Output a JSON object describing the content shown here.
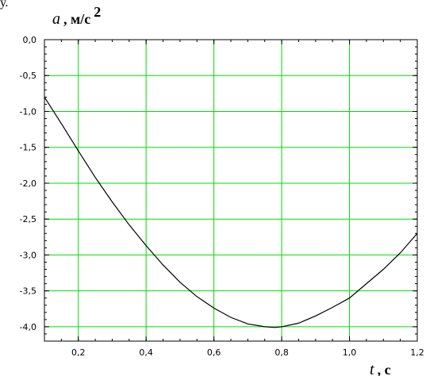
{
  "page_fragment": "у.",
  "chart_data": {
    "type": "line",
    "title": "",
    "ylabel_symbol": "a",
    "ylabel_units": ", м/с",
    "ylabel_units_superscript": "2",
    "xlabel_symbol": "t",
    "xlabel_units": ", с",
    "xlim": [
      0.1,
      1.2
    ],
    "ylim": [
      -4.2,
      0.0
    ],
    "grid": true,
    "grid_color": "#00dd00",
    "line_color": "#000000",
    "x_ticks": [
      0.2,
      0.4,
      0.6,
      0.8,
      1.0,
      1.2
    ],
    "x_tick_labels": [
      "0,2",
      "0,4",
      "0,6",
      "0,8",
      "1,0",
      "1,2"
    ],
    "y_ticks": [
      0.0,
      -0.5,
      -1.0,
      -1.5,
      -2.0,
      -2.5,
      -3.0,
      -3.5,
      -4.0
    ],
    "y_tick_labels": [
      "0,0",
      "-0,5",
      "-1,0",
      "-1,5",
      "-2,0",
      "-2,5",
      "-3,0",
      "-3,5",
      "-4,0"
    ],
    "series": [
      {
        "x": [
          0.1,
          0.15,
          0.2,
          0.25,
          0.3,
          0.35,
          0.4,
          0.45,
          0.5,
          0.55,
          0.6,
          0.65,
          0.7,
          0.75,
          0.78,
          0.8,
          0.85,
          0.9,
          0.95,
          1.0,
          1.05,
          1.1,
          1.15,
          1.2
        ],
        "y": [
          -0.8,
          -1.17,
          -1.55,
          -1.92,
          -2.26,
          -2.58,
          -2.87,
          -3.14,
          -3.38,
          -3.58,
          -3.74,
          -3.87,
          -3.96,
          -4.0,
          -4.01,
          -4.0,
          -3.95,
          -3.85,
          -3.73,
          -3.6,
          -3.4,
          -3.2,
          -2.97,
          -2.7
        ]
      }
    ]
  }
}
